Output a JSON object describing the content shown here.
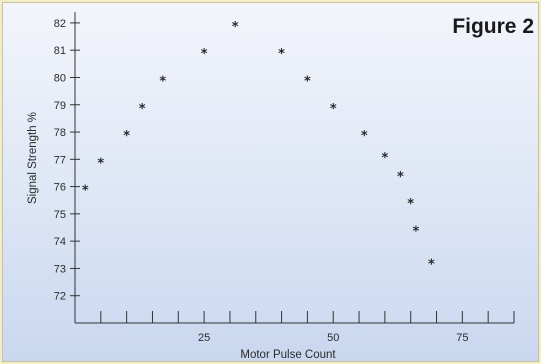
{
  "figure_label": "Figure 2",
  "chart_data": {
    "type": "scatter",
    "title": "",
    "xlabel": "Motor Pulse Count",
    "ylabel": "Signal Strength %",
    "xlim": [
      0,
      85
    ],
    "ylim": [
      71,
      82.4
    ],
    "x_ticks": [
      25,
      50,
      75
    ],
    "x_minor_step": 5,
    "y_ticks": [
      72,
      73,
      74,
      75,
      76,
      77,
      78,
      79,
      80,
      81,
      82
    ],
    "marker": "*",
    "grid": false,
    "legend": "none",
    "points": [
      {
        "x": 2,
        "y": 76
      },
      {
        "x": 5,
        "y": 77
      },
      {
        "x": 10,
        "y": 78
      },
      {
        "x": 13,
        "y": 79
      },
      {
        "x": 17,
        "y": 80
      },
      {
        "x": 25,
        "y": 81
      },
      {
        "x": 31,
        "y": 82
      },
      {
        "x": 40,
        "y": 81
      },
      {
        "x": 45,
        "y": 80
      },
      {
        "x": 50,
        "y": 79
      },
      {
        "x": 56,
        "y": 78
      },
      {
        "x": 60,
        "y": 77.2
      },
      {
        "x": 63,
        "y": 76.5
      },
      {
        "x": 65,
        "y": 75.5
      },
      {
        "x": 66,
        "y": 74.5
      },
      {
        "x": 69,
        "y": 73.3
      }
    ]
  }
}
